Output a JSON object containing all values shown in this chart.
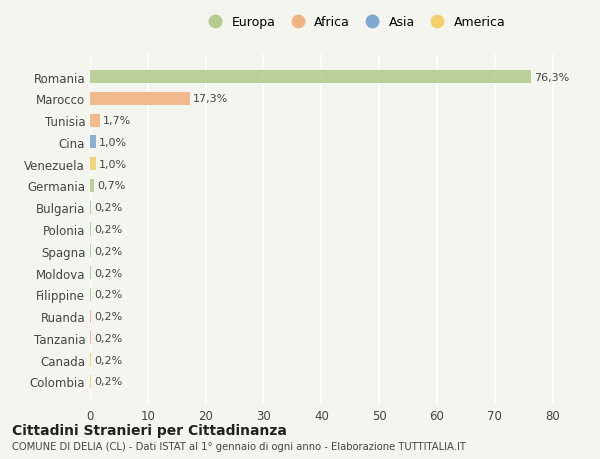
{
  "countries": [
    "Romania",
    "Marocco",
    "Tunisia",
    "Cina",
    "Venezuela",
    "Germania",
    "Bulgaria",
    "Polonia",
    "Spagna",
    "Moldova",
    "Filippine",
    "Ruanda",
    "Tanzania",
    "Canada",
    "Colombia"
  ],
  "values": [
    76.3,
    17.3,
    1.7,
    1.0,
    1.0,
    0.7,
    0.2,
    0.2,
    0.2,
    0.2,
    0.2,
    0.2,
    0.2,
    0.2,
    0.2
  ],
  "labels": [
    "76,3%",
    "17,3%",
    "1,7%",
    "1,0%",
    "1,0%",
    "0,7%",
    "0,2%",
    "0,2%",
    "0,2%",
    "0,2%",
    "0,2%",
    "0,2%",
    "0,2%",
    "0,2%",
    "0,2%"
  ],
  "colors": [
    "#b5cc8e",
    "#f0b482",
    "#f0b482",
    "#7fa8d1",
    "#f5d06e",
    "#b5cc8e",
    "#b5cc8e",
    "#b5cc8e",
    "#b5cc8e",
    "#b5cc8e",
    "#b5cc8e",
    "#f0b482",
    "#f0b482",
    "#f5d06e",
    "#f5d06e"
  ],
  "legend_labels": [
    "Europa",
    "Africa",
    "Asia",
    "America"
  ],
  "legend_colors": [
    "#b5cc8e",
    "#f0b482",
    "#7fa8d1",
    "#f5d06e"
  ],
  "title": "Cittadini Stranieri per Cittadinanza",
  "subtitle": "COMUNE DI DELIA (CL) - Dati ISTAT al 1° gennaio di ogni anno - Elaborazione TUTTITALIA.IT",
  "xlim": [
    0,
    83
  ],
  "xticks": [
    0,
    10,
    20,
    30,
    40,
    50,
    60,
    70,
    80
  ],
  "bg_color": "#f5f5f0",
  "grid_color": "#ffffff",
  "bar_height": 0.6
}
